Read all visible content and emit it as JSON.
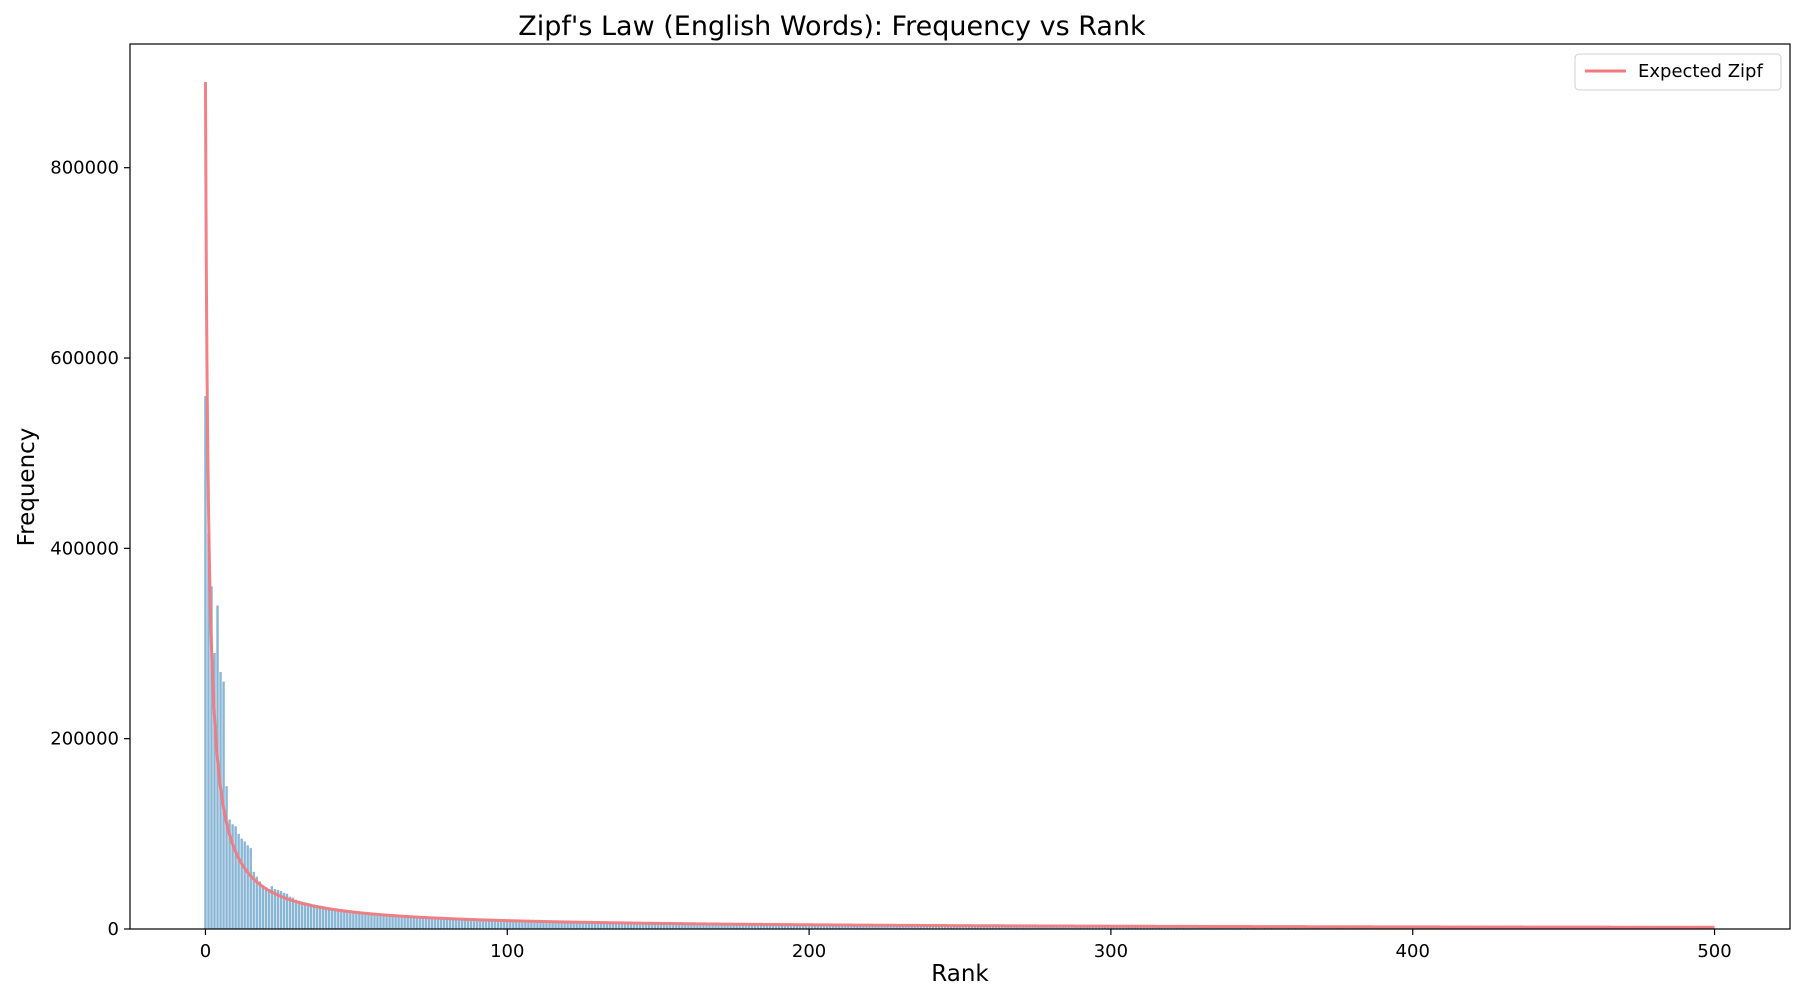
{
  "chart_data": {
    "type": "bar",
    "title": "Zipf's Law (English Words): Frequency vs Rank",
    "xlabel": "Rank",
    "ylabel": "Frequency",
    "xlim": [
      -25,
      525
    ],
    "ylim": [
      0,
      930000
    ],
    "x_ticks": [
      0,
      100,
      200,
      300,
      400,
      500
    ],
    "y_ticks": [
      0,
      200000,
      400000,
      600000,
      800000
    ],
    "grid": false,
    "legend": {
      "position": "top-right",
      "entries": [
        "Expected Zipf"
      ]
    },
    "colors": {
      "bars": "#8ab6d6",
      "expected_line": "#f07a7e"
    },
    "bars": {
      "x_start": 0,
      "x_end": 499,
      "leading_values": [
        560000,
        415000,
        360000,
        290000,
        340000,
        270000,
        260000,
        150000,
        115000,
        110000,
        108000,
        100000,
        95000,
        92000,
        88000,
        85000,
        60000,
        55000,
        50000,
        46000,
        44000,
        42000,
        45000,
        42000,
        41000,
        40000,
        38000,
        37000,
        34000,
        33000
      ],
      "tail_base": 890000,
      "tail_exponent": 0.98
    },
    "series": [
      {
        "name": "Expected Zipf",
        "type": "line",
        "c": 890000,
        "exponent": 1.0,
        "x_start": 0,
        "x_end": 500
      }
    ]
  }
}
